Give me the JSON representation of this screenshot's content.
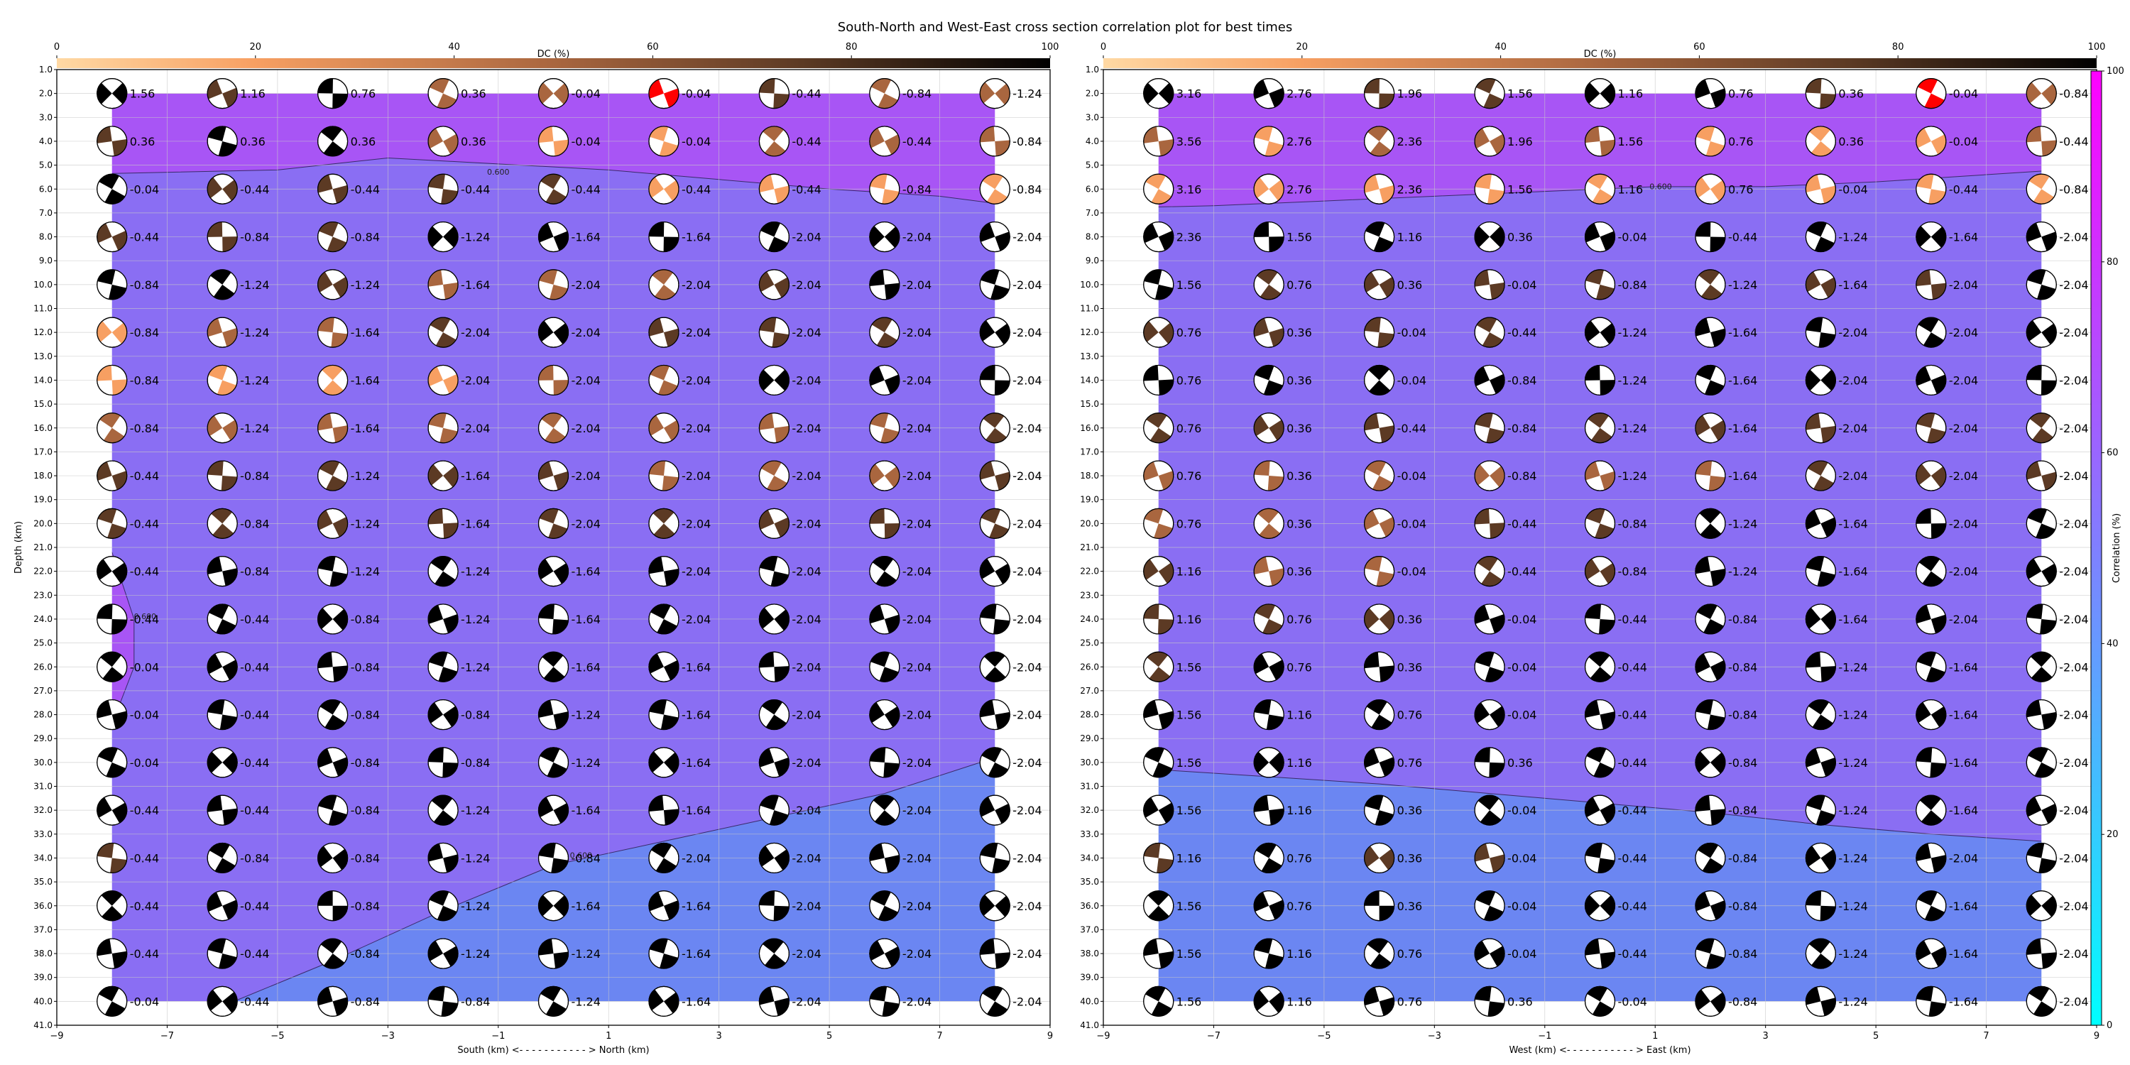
{
  "title": "South-North and West-East cross section correlation plot for best times",
  "colors": {
    "high_corr_fill": "#a855f5",
    "low_corr_fill": "#6b86f2",
    "dc_cmap": [
      "#ffd9a4",
      "#f79f62",
      "#a9663f",
      "#5c3a24",
      "#000000"
    ],
    "corr_cmap": [
      "#00ffff",
      "#ff00ff"
    ],
    "max_marker": "#ff0000"
  },
  "dc_colorbar": {
    "label": "DC (%)",
    "ticks": [
      "0",
      "20",
      "40",
      "60",
      "80",
      "100"
    ]
  },
  "corr_colorbar": {
    "label": "Correlation (%)",
    "ticks": [
      "0",
      "20",
      "40",
      "60",
      "80",
      "100"
    ]
  },
  "panels": [
    {
      "xlabel": "South (km) <- - - - - - - - - - - > North (km)",
      "ylabel": "Depth (km)",
      "xlim": [
        -9,
        9
      ],
      "ylim": [
        41,
        1
      ],
      "xticks": [
        -9,
        -7,
        -5,
        -3,
        -1,
        1,
        3,
        5,
        7,
        9
      ],
      "contour_labels": [
        {
          "text": "0.600",
          "x": -1.0,
          "y": 5.4
        },
        {
          "text": "0.600",
          "x": -7.4,
          "y": 24.0
        },
        {
          "text": "0.600",
          "x": 0.5,
          "y": 34.0
        }
      ],
      "grid_x": [
        -8,
        -6,
        -4,
        -2,
        0,
        2,
        4,
        6,
        8
      ],
      "grid_y": [
        2,
        4,
        6,
        8,
        10,
        12,
        14,
        16,
        18,
        20,
        22,
        24,
        26,
        28,
        30,
        32,
        34,
        36,
        38,
        40
      ],
      "labels": [
        [
          "1.56",
          "1.16",
          "0.76",
          "0.36",
          "-0.04",
          "-0.04",
          "-0.44",
          "-0.84",
          "-1.24"
        ],
        [
          "0.36",
          "0.36",
          "0.36",
          "0.36",
          "-0.04",
          "-0.04",
          "-0.44",
          "-0.44",
          "-0.84"
        ],
        [
          "-0.04",
          "-0.44",
          "-0.44",
          "-0.44",
          "-0.44",
          "-0.44",
          "-0.44",
          "-0.84",
          "-0.84"
        ],
        [
          "-0.44",
          "-0.84",
          "-0.84",
          "-1.24",
          "-1.64",
          "-1.64",
          "-2.04",
          "-2.04",
          "-2.04"
        ],
        [
          "-0.84",
          "-1.24",
          "-1.24",
          "-1.64",
          "-2.04",
          "-2.04",
          "-2.04",
          "-2.04",
          "-2.04"
        ],
        [
          "-0.84",
          "-1.24",
          "-1.64",
          "-2.04",
          "-2.04",
          "-2.04",
          "-2.04",
          "-2.04",
          "-2.04"
        ],
        [
          "-0.84",
          "-1.24",
          "-1.64",
          "-2.04",
          "-2.04",
          "-2.04",
          "-2.04",
          "-2.04",
          "-2.04"
        ],
        [
          "-0.84",
          "-1.24",
          "-1.64",
          "-2.04",
          "-2.04",
          "-2.04",
          "-2.04",
          "-2.04",
          "-2.04"
        ],
        [
          "-0.44",
          "-0.84",
          "-1.24",
          "-1.64",
          "-2.04",
          "-2.04",
          "-2.04",
          "-2.04",
          "-2.04"
        ],
        [
          "-0.44",
          "-0.84",
          "-1.24",
          "-1.64",
          "-2.04",
          "-2.04",
          "-2.04",
          "-2.04",
          "-2.04"
        ],
        [
          "-0.44",
          "-0.84",
          "-1.24",
          "-1.24",
          "-1.64",
          "-2.04",
          "-2.04",
          "-2.04",
          "-2.04"
        ],
        [
          "-0.44",
          "-0.44",
          "-0.84",
          "-1.24",
          "-1.64",
          "-2.04",
          "-2.04",
          "-2.04",
          "-2.04"
        ],
        [
          "-0.04",
          "-0.44",
          "-0.84",
          "-1.24",
          "-1.64",
          "-1.64",
          "-2.04",
          "-2.04",
          "-2.04"
        ],
        [
          "-0.04",
          "-0.44",
          "-0.84",
          "-0.84",
          "-1.24",
          "-1.64",
          "-2.04",
          "-2.04",
          "-2.04"
        ],
        [
          "-0.04",
          "-0.44",
          "-0.84",
          "-0.84",
          "-1.24",
          "-1.64",
          "-2.04",
          "-2.04",
          "-2.04"
        ],
        [
          "-0.44",
          "-0.44",
          "-0.84",
          "-1.24",
          "-1.64",
          "-1.64",
          "-2.04",
          "-2.04",
          "-2.04"
        ],
        [
          "-0.44",
          "-0.84",
          "-0.84",
          "-1.24",
          "-0.84",
          "-2.04",
          "-2.04",
          "-2.04",
          "-2.04"
        ],
        [
          "-0.44",
          "-0.44",
          "-0.84",
          "-1.24",
          "-1.64",
          "-1.64",
          "-2.04",
          "-2.04",
          "-2.04"
        ],
        [
          "-0.44",
          "-0.44",
          "-0.84",
          "-1.24",
          "-1.24",
          "-1.64",
          "-2.04",
          "-2.04",
          "-2.04"
        ],
        [
          "-0.04",
          "-0.44",
          "-0.84",
          "-0.84",
          "-1.24",
          "-1.64",
          "-2.04",
          "-2.04",
          "-2.04"
        ]
      ],
      "dc_levels": [
        [
          4,
          3,
          4,
          2,
          2,
          0,
          3,
          2,
          2
        ],
        [
          3,
          4,
          4,
          2,
          1,
          1,
          2,
          2,
          2
        ],
        [
          4,
          3,
          3,
          3,
          3,
          1,
          1,
          1,
          1
        ],
        [
          3,
          3,
          3,
          4,
          4,
          4,
          4,
          4,
          4
        ],
        [
          4,
          4,
          3,
          2,
          2,
          2,
          3,
          4,
          4
        ],
        [
          1,
          2,
          2,
          3,
          4,
          3,
          3,
          3,
          4
        ],
        [
          1,
          1,
          1,
          1,
          2,
          2,
          4,
          4,
          4
        ],
        [
          2,
          2,
          2,
          2,
          2,
          2,
          2,
          2,
          3
        ],
        [
          3,
          3,
          3,
          3,
          3,
          2,
          2,
          2,
          3
        ],
        [
          3,
          3,
          3,
          3,
          3,
          3,
          3,
          3,
          3
        ],
        [
          4,
          4,
          4,
          4,
          4,
          4,
          4,
          4,
          4
        ],
        [
          4,
          4,
          4,
          4,
          4,
          4,
          4,
          4,
          4
        ],
        [
          4,
          4,
          4,
          4,
          4,
          4,
          4,
          4,
          4
        ],
        [
          4,
          4,
          4,
          4,
          4,
          4,
          4,
          4,
          4
        ],
        [
          4,
          4,
          4,
          4,
          4,
          4,
          4,
          4,
          4
        ],
        [
          4,
          4,
          4,
          4,
          4,
          4,
          4,
          4,
          4
        ],
        [
          3,
          4,
          4,
          4,
          4,
          4,
          4,
          4,
          4
        ],
        [
          4,
          4,
          4,
          4,
          4,
          4,
          4,
          4,
          4
        ],
        [
          4,
          4,
          4,
          4,
          4,
          4,
          4,
          4,
          4
        ],
        [
          4,
          4,
          4,
          4,
          4,
          4,
          4,
          4,
          4
        ]
      ],
      "max_marker": {
        "x": 2,
        "y": 2
      },
      "boundary": [
        [
          -9,
          5.4
        ],
        [
          -5,
          5.2
        ],
        [
          -3,
          4.7
        ],
        [
          1,
          5.2
        ],
        [
          3,
          5.6
        ],
        [
          5,
          6.0
        ],
        [
          7,
          6.3
        ],
        [
          8,
          6.6
        ],
        [
          9,
          6.8
        ],
        [
          9,
          29.5
        ],
        [
          8,
          29.8
        ],
        [
          6,
          31.3
        ],
        [
          4,
          32.3
        ],
        [
          2,
          33.3
        ],
        [
          0,
          34.3
        ],
        [
          -2,
          36.2
        ],
        [
          -4,
          38.3
        ],
        [
          -6,
          40.2
        ],
        [
          -9,
          41
        ],
        [
          -9,
          28.3
        ],
        [
          -8,
          28.4
        ],
        [
          -7.6,
          26.0
        ],
        [
          -7.6,
          24.0
        ],
        [
          -8,
          21.2
        ],
        [
          -9,
          20.5
        ]
      ]
    },
    {
      "xlabel": "West (km) <- - - - - - - - - - - > East (km)",
      "ylabel": "",
      "xlim": [
        -9,
        9
      ],
      "ylim": [
        41,
        1
      ],
      "xticks": [
        -9,
        -7,
        -5,
        -3,
        -1,
        1,
        3,
        5,
        7,
        9
      ],
      "contour_labels": [
        {
          "text": "0.600",
          "x": 1.1,
          "y": 6.0
        }
      ],
      "grid_x": [
        -8,
        -6,
        -4,
        -2,
        0,
        2,
        4,
        6,
        8
      ],
      "grid_y": [
        2,
        4,
        6,
        8,
        10,
        12,
        14,
        16,
        18,
        20,
        22,
        24,
        26,
        28,
        30,
        32,
        34,
        36,
        38,
        40
      ],
      "labels": [
        [
          "3.16",
          "2.76",
          "1.96",
          "1.56",
          "1.16",
          "0.76",
          "0.36",
          "-0.04",
          "-0.84"
        ],
        [
          "3.56",
          "2.76",
          "2.36",
          "1.96",
          "1.56",
          "0.76",
          "0.36",
          "-0.04",
          "-0.44"
        ],
        [
          "3.16",
          "2.76",
          "2.36",
          "1.56",
          "1.16",
          "0.76",
          "-0.04",
          "-0.44",
          "-0.84"
        ],
        [
          "2.36",
          "1.56",
          "1.16",
          "0.36",
          "-0.04",
          "-0.44",
          "-1.24",
          "-1.64",
          "-2.04"
        ],
        [
          "1.56",
          "0.76",
          "0.36",
          "-0.04",
          "-0.84",
          "-1.24",
          "-1.64",
          "-2.04",
          "-2.04"
        ],
        [
          "0.76",
          "0.36",
          "-0.04",
          "-0.44",
          "-1.24",
          "-1.64",
          "-2.04",
          "-2.04",
          "-2.04"
        ],
        [
          "0.76",
          "0.36",
          "-0.04",
          "-0.84",
          "-1.24",
          "-1.64",
          "-2.04",
          "-2.04",
          "-2.04"
        ],
        [
          "0.76",
          "0.36",
          "-0.44",
          "-0.84",
          "-1.24",
          "-1.64",
          "-2.04",
          "-2.04",
          "-2.04"
        ],
        [
          "0.76",
          "0.36",
          "-0.04",
          "-0.84",
          "-1.24",
          "-1.64",
          "-2.04",
          "-2.04",
          "-2.04"
        ],
        [
          "0.76",
          "0.36",
          "-0.04",
          "-0.44",
          "-0.84",
          "-1.24",
          "-1.64",
          "-2.04",
          "-2.04"
        ],
        [
          "1.16",
          "0.36",
          "-0.04",
          "-0.44",
          "-0.84",
          "-1.24",
          "-1.64",
          "-2.04",
          "-2.04"
        ],
        [
          "1.16",
          "0.76",
          "0.36",
          "-0.04",
          "-0.44",
          "-0.84",
          "-1.64",
          "-2.04",
          "-2.04"
        ],
        [
          "1.56",
          "0.76",
          "0.36",
          "-0.04",
          "-0.44",
          "-0.84",
          "-1.24",
          "-1.64",
          "-2.04"
        ],
        [
          "1.56",
          "1.16",
          "0.76",
          "-0.04",
          "-0.44",
          "-0.84",
          "-1.24",
          "-1.64",
          "-2.04"
        ],
        [
          "1.56",
          "1.16",
          "0.76",
          "0.36",
          "-0.44",
          "-0.84",
          "-1.24",
          "-1.64",
          "-2.04"
        ],
        [
          "1.56",
          "1.16",
          "0.36",
          "-0.04",
          "-0.44",
          "-0.84",
          "-1.24",
          "-1.64",
          "-2.04"
        ],
        [
          "1.16",
          "0.76",
          "0.36",
          "-0.04",
          "-0.44",
          "-0.84",
          "-1.24",
          "-2.04",
          "-2.04"
        ],
        [
          "1.56",
          "0.76",
          "0.36",
          "-0.04",
          "-0.44",
          "-0.84",
          "-1.24",
          "-1.64",
          "-2.04"
        ],
        [
          "1.56",
          "1.16",
          "0.76",
          "-0.04",
          "-0.44",
          "-0.84",
          "-1.24",
          "-1.64",
          "-2.04"
        ],
        [
          "1.56",
          "1.16",
          "0.76",
          "0.36",
          "-0.04",
          "-0.84",
          "-1.24",
          "-1.64",
          "-2.04"
        ]
      ],
      "dc_levels": [
        [
          4,
          4,
          3,
          3,
          4,
          4,
          3,
          0,
          2
        ],
        [
          2,
          1,
          2,
          2,
          2,
          1,
          1,
          1,
          2
        ],
        [
          1,
          1,
          1,
          1,
          1,
          1,
          1,
          1,
          1
        ],
        [
          4,
          4,
          4,
          4,
          4,
          4,
          4,
          4,
          4
        ],
        [
          4,
          3,
          3,
          3,
          3,
          3,
          3,
          3,
          4
        ],
        [
          3,
          3,
          3,
          3,
          4,
          4,
          4,
          4,
          4
        ],
        [
          4,
          4,
          4,
          4,
          4,
          4,
          4,
          4,
          4
        ],
        [
          3,
          3,
          3,
          3,
          3,
          3,
          3,
          3,
          3
        ],
        [
          2,
          2,
          2,
          2,
          2,
          2,
          3,
          3,
          3
        ],
        [
          2,
          2,
          2,
          3,
          3,
          4,
          4,
          4,
          4
        ],
        [
          3,
          2,
          2,
          3,
          3,
          4,
          4,
          4,
          4
        ],
        [
          3,
          3,
          3,
          4,
          4,
          4,
          4,
          4,
          4
        ],
        [
          3,
          4,
          4,
          4,
          4,
          4,
          4,
          4,
          4
        ],
        [
          4,
          4,
          4,
          4,
          4,
          4,
          4,
          4,
          4
        ],
        [
          4,
          4,
          4,
          4,
          4,
          4,
          4,
          4,
          4
        ],
        [
          4,
          4,
          4,
          4,
          4,
          4,
          4,
          4,
          4
        ],
        [
          3,
          4,
          3,
          3,
          4,
          4,
          4,
          4,
          4
        ],
        [
          4,
          4,
          4,
          4,
          4,
          4,
          4,
          4,
          4
        ],
        [
          4,
          4,
          4,
          4,
          4,
          4,
          4,
          4,
          4
        ],
        [
          4,
          4,
          4,
          4,
          4,
          4,
          4,
          4,
          4
        ]
      ],
      "max_marker": {
        "x": 6,
        "y": 2
      },
      "boundary": [
        [
          -9,
          6.8
        ],
        [
          -7,
          6.7
        ],
        [
          -5,
          6.5
        ],
        [
          -3,
          6.3
        ],
        [
          -1,
          6.1
        ],
        [
          1,
          5.9
        ],
        [
          3,
          5.9
        ],
        [
          5,
          5.7
        ],
        [
          7,
          5.4
        ],
        [
          9,
          5.1
        ],
        [
          9,
          33.5
        ],
        [
          8,
          33.3
        ],
        [
          6,
          33.0
        ],
        [
          4,
          32.6
        ],
        [
          2,
          32.1
        ],
        [
          0,
          31.7
        ],
        [
          -2,
          31.3
        ],
        [
          -4,
          30.9
        ],
        [
          -6,
          30.6
        ],
        [
          -8,
          30.3
        ],
        [
          -9,
          30.2
        ]
      ]
    }
  ]
}
